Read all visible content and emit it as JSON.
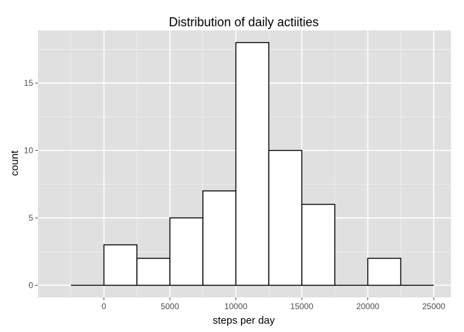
{
  "chart_data": {
    "type": "bar",
    "title": "Distribution of daily actiities",
    "xlabel": "steps per day",
    "ylabel": "count",
    "bin_width": 2500,
    "bins": [
      {
        "start": -2500,
        "end": 0,
        "count": 0
      },
      {
        "start": 0,
        "end": 2500,
        "count": 3
      },
      {
        "start": 2500,
        "end": 5000,
        "count": 2
      },
      {
        "start": 5000,
        "end": 7500,
        "count": 5
      },
      {
        "start": 7500,
        "end": 10000,
        "count": 7
      },
      {
        "start": 10000,
        "end": 12500,
        "count": 18
      },
      {
        "start": 12500,
        "end": 15000,
        "count": 10
      },
      {
        "start": 15000,
        "end": 17500,
        "count": 6
      },
      {
        "start": 17500,
        "end": 20000,
        "count": 0
      },
      {
        "start": 20000,
        "end": 22500,
        "count": 2
      },
      {
        "start": 22500,
        "end": 25000,
        "count": 0
      }
    ],
    "xlim": [
      -5000,
      26300
    ],
    "ylim": [
      -0.9,
      18.9
    ],
    "x_ticks": [
      0,
      5000,
      10000,
      15000,
      20000,
      25000
    ],
    "x_tick_labels": [
      "0",
      "5000",
      "10000",
      "15000",
      "20000",
      "25000"
    ],
    "y_ticks": [
      0,
      5,
      10,
      15
    ],
    "y_tick_labels": [
      "0",
      "5",
      "10",
      "15"
    ],
    "grid": true,
    "colors": {
      "panel": "#e0e0e0",
      "grid_major": "#ffffff",
      "grid_minor": "#f0f0f0",
      "bar_fill": "#ffffff",
      "bar_stroke": "#000000",
      "tick": "#4d4d4d"
    }
  }
}
